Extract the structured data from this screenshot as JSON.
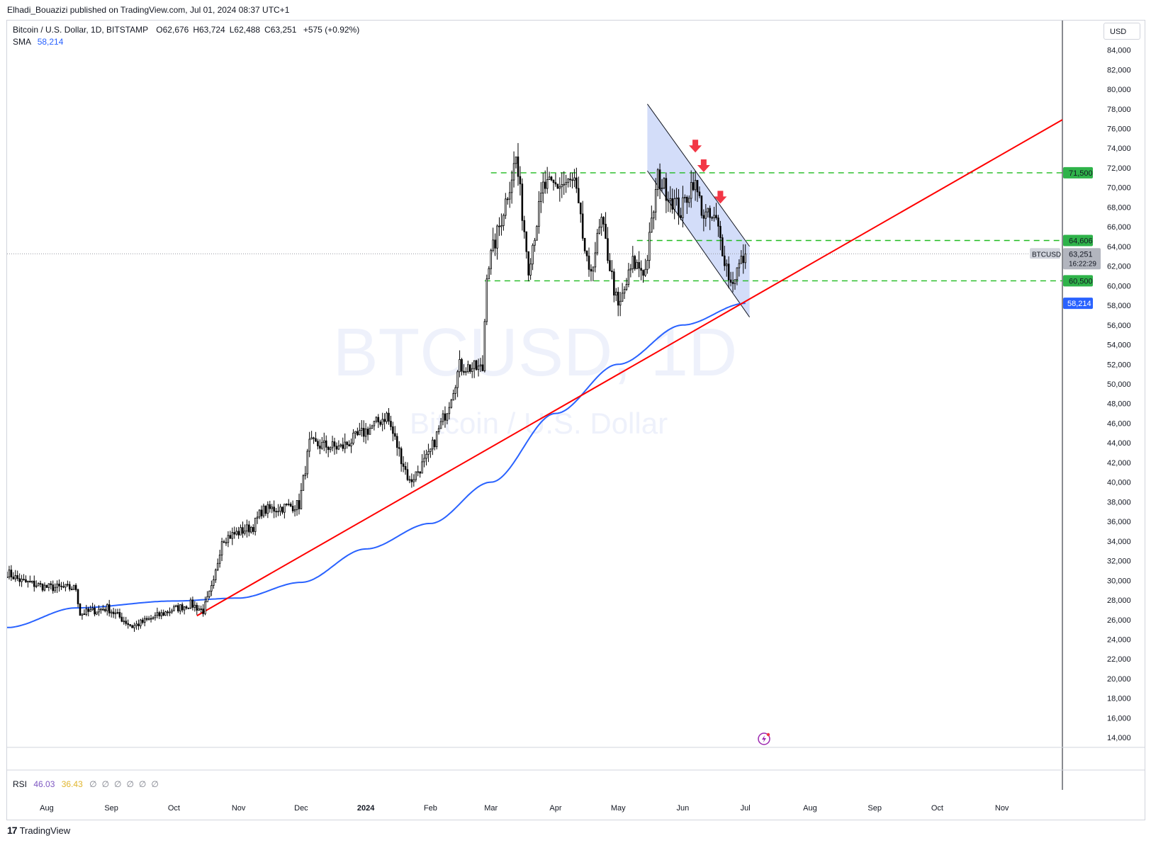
{
  "publisher_line": "Elhadi_Bouazizi published on TradingView.com, Jul 01, 2024 08:37 UTC+1",
  "header": {
    "symbol_line": "Bitcoin / U.S. Dollar, 1D, BITSTAMP",
    "ohlc": [
      {
        "k": "O",
        "v": "62,676"
      },
      {
        "k": "H",
        "v": "63,724"
      },
      {
        "k": "L",
        "v": "62,488"
      },
      {
        "k": "C",
        "v": "63,251"
      }
    ],
    "change": "+575 (+0.92%)",
    "sma_label": "SMA",
    "sma_value": "58,214"
  },
  "rsi": {
    "label": "RSI",
    "value1": "46.03",
    "value2": "36.43",
    "icons": "∅∅∅∅∅∅"
  },
  "currency_button": "USD",
  "watermark": {
    "main": "BTCUSD, 1D",
    "sub": "Bitcoin / U.S. Dollar"
  },
  "footer": {
    "brand": "TradingView"
  },
  "colors": {
    "up": "#000000",
    "down": "#000000",
    "sma": "#2962ff",
    "trendline": "#ff0000",
    "levels": "#1fbb1f",
    "channel_fill": "#c8d4f8",
    "arrows": "#f23645"
  },
  "chart_data": {
    "type": "candlestick",
    "yaxis": {
      "min": 13000,
      "max": 87000,
      "step": 2000,
      "side": "right",
      "ticks": [
        "84,000",
        "82,000",
        "80,000",
        "78,000",
        "76,000",
        "74,000",
        "72,000",
        "70,000",
        "68,000",
        "66,000",
        "64,000",
        "62,000",
        "60,000",
        "58,000",
        "56,000",
        "54,000",
        "52,000",
        "50,000",
        "48,000",
        "46,000",
        "44,000",
        "42,000",
        "40,000",
        "38,000",
        "36,000",
        "34,000",
        "32,000",
        "30,000",
        "28,000",
        "26,000",
        "24,000",
        "22,000",
        "20,000",
        "18,000",
        "16,000",
        "14,000"
      ]
    },
    "xaxis": {
      "start": "2023-07-13",
      "end": "2024-11-30",
      "labels": [
        {
          "date": "2023-08-01",
          "label": "Aug"
        },
        {
          "date": "2023-09-01",
          "label": "Sep"
        },
        {
          "date": "2023-10-01",
          "label": "Oct"
        },
        {
          "date": "2023-11-01",
          "label": "Nov"
        },
        {
          "date": "2023-12-01",
          "label": "Dec"
        },
        {
          "date": "2024-01-01",
          "label": "2024"
        },
        {
          "date": "2024-02-01",
          "label": "Feb"
        },
        {
          "date": "2024-03-01",
          "label": "Mar"
        },
        {
          "date": "2024-04-01",
          "label": "Apr"
        },
        {
          "date": "2024-05-01",
          "label": "May"
        },
        {
          "date": "2024-06-01",
          "label": "Jun"
        },
        {
          "date": "2024-07-01",
          "label": "Jul"
        },
        {
          "date": "2024-08-01",
          "label": "Aug"
        },
        {
          "date": "2024-09-01",
          "label": "Sep"
        },
        {
          "date": "2024-10-01",
          "label": "Oct"
        },
        {
          "date": "2024-11-01",
          "label": "Nov"
        }
      ]
    },
    "price_anchors": [
      {
        "date": "2023-07-13",
        "close": 30800
      },
      {
        "date": "2023-07-20",
        "close": 29900
      },
      {
        "date": "2023-08-01",
        "close": 29300
      },
      {
        "date": "2023-08-15",
        "close": 29200
      },
      {
        "date": "2023-08-17",
        "close": 26600
      },
      {
        "date": "2023-08-30",
        "close": 27200
      },
      {
        "date": "2023-09-11",
        "close": 25300
      },
      {
        "date": "2023-09-30",
        "close": 27000
      },
      {
        "date": "2023-10-09",
        "close": 27600
      },
      {
        "date": "2023-10-15",
        "close": 26900
      },
      {
        "date": "2023-10-20",
        "close": 29700
      },
      {
        "date": "2023-10-24",
        "close": 34200
      },
      {
        "date": "2023-11-08",
        "close": 35500
      },
      {
        "date": "2023-11-12",
        "close": 37100
      },
      {
        "date": "2023-11-30",
        "close": 37700
      },
      {
        "date": "2023-12-05",
        "close": 43900
      },
      {
        "date": "2023-12-20",
        "close": 43500
      },
      {
        "date": "2024-01-03",
        "close": 45500
      },
      {
        "date": "2024-01-11",
        "close": 46800
      },
      {
        "date": "2024-01-22",
        "close": 40000
      },
      {
        "date": "2024-01-31",
        "close": 42600
      },
      {
        "date": "2024-02-09",
        "close": 47500
      },
      {
        "date": "2024-02-15",
        "close": 51800
      },
      {
        "date": "2024-02-26",
        "close": 51500
      },
      {
        "date": "2024-02-28",
        "close": 61500
      },
      {
        "date": "2024-03-05",
        "close": 66000
      },
      {
        "date": "2024-03-13",
        "close": 73000
      },
      {
        "date": "2024-03-19",
        "close": 62000
      },
      {
        "date": "2024-03-26",
        "close": 70000
      },
      {
        "date": "2024-04-10",
        "close": 70500
      },
      {
        "date": "2024-04-17",
        "close": 60800
      },
      {
        "date": "2024-04-23",
        "close": 66500
      },
      {
        "date": "2024-05-01",
        "close": 57500
      },
      {
        "date": "2024-05-08",
        "close": 62300
      },
      {
        "date": "2024-05-14",
        "close": 61500
      },
      {
        "date": "2024-05-20",
        "close": 71000
      },
      {
        "date": "2024-05-31",
        "close": 67500
      },
      {
        "date": "2024-06-06",
        "close": 70800
      },
      {
        "date": "2024-06-11",
        "close": 67200
      },
      {
        "date": "2024-06-17",
        "close": 66500
      },
      {
        "date": "2024-06-24",
        "close": 60200
      },
      {
        "date": "2024-06-27",
        "close": 61600
      },
      {
        "date": "2024-07-01",
        "close": 63251
      }
    ],
    "sma_anchors": [
      {
        "date": "2023-07-13",
        "value": 25200
      },
      {
        "date": "2023-08-15",
        "value": 27200
      },
      {
        "date": "2023-10-01",
        "value": 27900
      },
      {
        "date": "2023-11-01",
        "value": 28200
      },
      {
        "date": "2023-12-01",
        "value": 29800
      },
      {
        "date": "2024-01-01",
        "value": 33200
      },
      {
        "date": "2024-02-01",
        "value": 35800
      },
      {
        "date": "2024-03-01",
        "value": 40000
      },
      {
        "date": "2024-04-01",
        "value": 47000
      },
      {
        "date": "2024-05-01",
        "value": 52000
      },
      {
        "date": "2024-06-01",
        "value": 56000
      },
      {
        "date": "2024-07-01",
        "value": 58214
      }
    ],
    "trendline": {
      "from": {
        "date": "2023-10-12",
        "price": 26400
      },
      "to": {
        "date": "2024-11-30",
        "price": 76900
      }
    },
    "levels": [
      {
        "price": 71500,
        "label": "71,500",
        "from": "2024-03-01"
      },
      {
        "price": 64606,
        "label": "64,606",
        "from": "2024-05-10"
      },
      {
        "price": 60500,
        "label": "60,500",
        "from": "2024-02-27"
      }
    ],
    "channel": {
      "upper_from": {
        "date": "2024-05-15",
        "price": 78500
      },
      "upper_to": {
        "date": "2024-07-03",
        "price": 64000
      },
      "lower_from": {
        "date": "2024-05-15",
        "price": 71700
      },
      "lower_to": {
        "date": "2024-07-03",
        "price": 56800
      }
    },
    "arrows": [
      {
        "date": "2024-06-07",
        "price": 74000
      },
      {
        "date": "2024-06-11",
        "price": 72000
      },
      {
        "date": "2024-06-19",
        "price": 68800
      }
    ],
    "last_price": {
      "symbol": "BTCUSD",
      "price": 63251,
      "label": "63,251",
      "countdown": "16:22:29"
    },
    "sma_price_label": {
      "price": 58214,
      "label": "58,214"
    }
  }
}
